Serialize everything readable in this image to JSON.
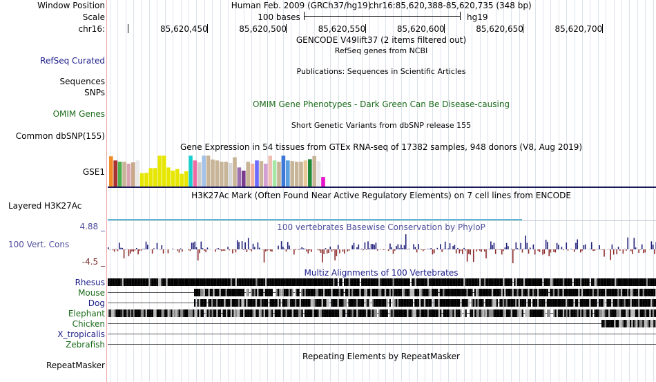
{
  "header": {
    "window_position_label": "Window Position",
    "scale_label": "Scale",
    "chrom_label": "chr16:",
    "assembly_text": "Human Feb. 2009 (GRCh37/hg19)",
    "position_text": "chr16:85,620,388-85,620,735 (348 bp)",
    "scale_text": "100 bases",
    "scale_assembly": "hg19"
  },
  "ruler": {
    "ticks": [
      "85,620,450",
      "85,620,500",
      "85,620,550",
      "85,620,600",
      "85,620,650",
      "85,620,700"
    ]
  },
  "tracks": {
    "gencode": {
      "title": "GENCODE V49lift37 (2 items filtered out)"
    },
    "refseq": {
      "label": "RefSeq Curated",
      "title": "RefSeq genes from NCBI"
    },
    "publications": {
      "title": "Publications: Sequences in Scientific Articles"
    },
    "sequences": {
      "label": "Sequences"
    },
    "snps": {
      "label": "SNPs"
    },
    "omim": {
      "label": "OMIM Genes",
      "title": "OMIM Gene Phenotypes - Dark Green Can Be Disease-causing"
    },
    "dbsnp": {
      "label": "Common dbSNP(155)",
      "title": "Short Genetic Variants from dbSNP release 155"
    },
    "gtex": {
      "label": "GSE1",
      "title": "Gene Expression in 54 tissues from GTEx RNA-seq of 17382 samples, 948 donors (V8, Aug 2019)",
      "bar_heights": [
        0.95,
        0.82,
        0.78,
        0.78,
        0.72,
        0.76,
        0.82,
        0.42,
        0.43,
        0.58,
        0.58,
        0.97,
        0.97,
        0.6,
        0.5,
        0.55,
        0.4,
        0.48,
        0.97,
        0.82,
        0.76,
        0.97,
        0.97,
        0.85,
        0.82,
        0.78,
        0.78,
        0.74,
        0.92,
        0.6,
        0.5,
        0.78,
        0.72,
        0.82,
        0.8,
        0.72,
        0.97,
        0.82,
        0.78,
        0.97,
        0.82,
        0.8,
        0.78,
        0.78,
        0.82,
        0.86,
        0.96,
        0.8,
        0.3
      ],
      "bar_colors": [
        "#f28c28",
        "#a83232",
        "#4cae4c",
        "#c8b497",
        "#d9a5b3",
        "#c8a88a",
        "#e8e8e8",
        "#e6e600",
        "#e6e600",
        "#e6e600",
        "#e6e600",
        "#e6e600",
        "#e6e600",
        "#e6e600",
        "#e6e600",
        "#e6e600",
        "#e6e600",
        "#e6e600",
        "#1ccfcf",
        "#ef6ba4",
        "#ccc",
        "#a4c2e8",
        "#c8b497",
        "#c8b497",
        "#c8b497",
        "#c8b497",
        "#c8b497",
        "#d8d8d8",
        "#c8b497",
        "#9b6fb0",
        "#7a3c8c",
        "#c8b497",
        "#f0b4a0",
        "#6b6bff",
        "#c8b497",
        "#d4a0d4",
        "#f0c0b4",
        "#a8e6a8",
        "#c8b497",
        "#3c78d8",
        "#5aa0e0",
        "#c8b497",
        "#c8b497",
        "#c8b497",
        "#e8c898",
        "#1e8a3a",
        "#c8b497",
        "#e8e8e8",
        "#e612cc"
      ]
    },
    "h3k27ac": {
      "label": "Layered H3K27Ac",
      "title": "H3K27Ac Mark (Often Found Near Active Regulatory Elements) on 7 cell lines from ENCODE"
    },
    "conservation": {
      "label": "100 Vert. Cons",
      "max_label": "4.88 _",
      "min_label": "-4.5 _",
      "title": "100 vertebrates Basewise Conservation by PhyloP",
      "pos_color": "#1f1f7a",
      "neg_color": "#8c2b2b"
    },
    "multiz": {
      "title": "Multiz Alignments of 100 Vertebrates",
      "species": [
        {
          "name": "Rhesus",
          "color": "#1a1a8a"
        },
        {
          "name": "Mouse",
          "color": "#1a6b1a"
        },
        {
          "name": "Dog",
          "color": "#1a1a8a"
        },
        {
          "name": "Elephant",
          "color": "#1a6b1a"
        },
        {
          "name": "Chicken",
          "color": "#1a6b1a"
        },
        {
          "name": "X_tropicalis",
          "color": "#1a1a8a"
        },
        {
          "name": "Zebrafish",
          "color": "#1a6b1a"
        }
      ]
    },
    "repeatmasker": {
      "label": "RepeatMasker",
      "title": "Repeating Elements by RepeatMasker"
    }
  }
}
